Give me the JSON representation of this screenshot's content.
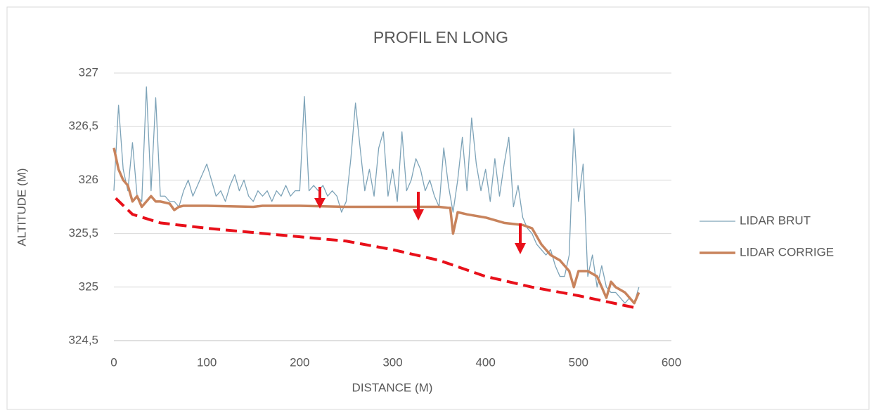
{
  "chart_data": {
    "type": "line",
    "title": "PROFIL EN LONG",
    "x_label": "DISTANCE (M)",
    "y_label": "ALTITUDE (M)",
    "xlim": [
      0,
      600
    ],
    "xticks": [
      0,
      100,
      200,
      300,
      400,
      500,
      600
    ],
    "ylim": [
      324.5,
      327
    ],
    "yticks": [
      {
        "value": 324.5,
        "label": "324,5"
      },
      325,
      {
        "value": 325.5,
        "label": "325,5"
      },
      326,
      {
        "value": 326.5,
        "label": "326,5"
      },
      327
    ],
    "grid": true,
    "legend": "right",
    "series": [
      {
        "name": "LIDAR BRUT",
        "color": "#7da3b8",
        "x": [
          0,
          5,
          10,
          15,
          20,
          25,
          30,
          35,
          40,
          45,
          50,
          55,
          60,
          65,
          70,
          75,
          80,
          85,
          90,
          95,
          100,
          105,
          110,
          115,
          120,
          125,
          130,
          135,
          140,
          145,
          150,
          155,
          160,
          165,
          170,
          175,
          180,
          185,
          190,
          195,
          200,
          205,
          210,
          215,
          220,
          225,
          230,
          235,
          240,
          245,
          250,
          255,
          260,
          265,
          270,
          275,
          280,
          285,
          290,
          295,
          300,
          305,
          310,
          315,
          320,
          325,
          330,
          335,
          340,
          345,
          350,
          355,
          360,
          365,
          370,
          375,
          380,
          385,
          390,
          395,
          400,
          405,
          410,
          415,
          420,
          425,
          430,
          435,
          440,
          445,
          450,
          455,
          460,
          465,
          470,
          475,
          480,
          485,
          490,
          495,
          500,
          505,
          510,
          515,
          520,
          525,
          530,
          535,
          540,
          545,
          550,
          555,
          560,
          565
        ],
        "values": [
          325.9,
          326.7,
          326.1,
          325.9,
          326.35,
          325.85,
          325.8,
          326.87,
          325.9,
          326.77,
          325.85,
          325.85,
          325.8,
          325.8,
          325.75,
          325.9,
          326.0,
          325.85,
          325.95,
          326.05,
          326.15,
          326.0,
          325.85,
          325.9,
          325.8,
          325.95,
          326.05,
          325.9,
          326.0,
          325.85,
          325.8,
          325.9,
          325.85,
          325.9,
          325.8,
          325.9,
          325.85,
          325.95,
          325.85,
          325.9,
          325.9,
          326.78,
          325.9,
          325.95,
          325.9,
          325.95,
          325.85,
          325.9,
          325.85,
          325.7,
          325.8,
          326.2,
          326.72,
          326.3,
          325.9,
          326.1,
          325.85,
          326.3,
          326.45,
          325.85,
          326.1,
          325.8,
          326.45,
          325.9,
          326.0,
          326.2,
          326.1,
          325.9,
          326.0,
          325.85,
          325.75,
          326.3,
          325.95,
          325.7,
          326.0,
          326.4,
          325.9,
          326.58,
          326.15,
          325.9,
          326.1,
          325.8,
          326.2,
          325.85,
          326.15,
          326.4,
          325.75,
          325.95,
          325.65,
          325.55,
          325.5,
          325.4,
          325.35,
          325.3,
          325.35,
          325.2,
          325.1,
          325.1,
          325.3,
          326.48,
          325.8,
          326.15,
          325.1,
          325.3,
          325.0,
          325.2,
          325.0,
          324.95,
          324.95,
          324.9,
          324.85,
          324.9,
          324.85,
          325.0
        ]
      },
      {
        "name": "LIDAR CORRIGE",
        "color": "#c8835c",
        "x": [
          0,
          5,
          10,
          15,
          20,
          25,
          30,
          35,
          40,
          45,
          50,
          60,
          65,
          70,
          75,
          100,
          150,
          160,
          200,
          250,
          300,
          350,
          360,
          362,
          365,
          370,
          380,
          400,
          420,
          440,
          450,
          460,
          470,
          480,
          490,
          495,
          500,
          510,
          520,
          525,
          530,
          535,
          540,
          550,
          560,
          565
        ],
        "values": [
          326.3,
          326.1,
          326.0,
          325.95,
          325.8,
          325.85,
          325.75,
          325.8,
          325.85,
          325.8,
          325.8,
          325.78,
          325.72,
          325.75,
          325.76,
          325.76,
          325.75,
          325.76,
          325.76,
          325.75,
          325.75,
          325.75,
          325.74,
          325.74,
          325.5,
          325.7,
          325.68,
          325.65,
          325.6,
          325.58,
          325.55,
          325.4,
          325.3,
          325.25,
          325.15,
          325.0,
          325.15,
          325.15,
          325.1,
          325.0,
          324.9,
          325.05,
          325.0,
          324.95,
          324.85,
          324.95
        ]
      },
      {
        "color": "#e8101a",
        "x": [
          2,
          20,
          50,
          100,
          200,
          250,
          300,
          350,
          400,
          450,
          500,
          565
        ],
        "values": [
          325.83,
          325.68,
          325.6,
          325.55,
          325.47,
          325.43,
          325.35,
          325.25,
          325.1,
          325.0,
          324.92,
          324.8
        ]
      }
    ]
  }
}
